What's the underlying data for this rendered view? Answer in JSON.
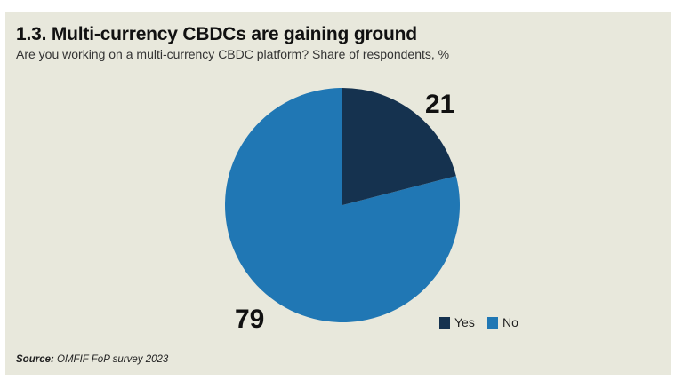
{
  "title": "1.3. Multi-currency CBDCs are gaining ground",
  "subtitle": "Are you working on a multi-currency CBDC platform? Share of respondents, %",
  "source_label": "Source:",
  "source_text": "OMFIF FoP survey 2023",
  "chart_data": {
    "type": "pie",
    "categories": [
      "Yes",
      "No"
    ],
    "values": [
      21,
      79
    ],
    "colors": [
      "#15324f",
      "#2077b4"
    ],
    "data_labels": [
      "21",
      "79"
    ],
    "legend": "bottom-right"
  }
}
